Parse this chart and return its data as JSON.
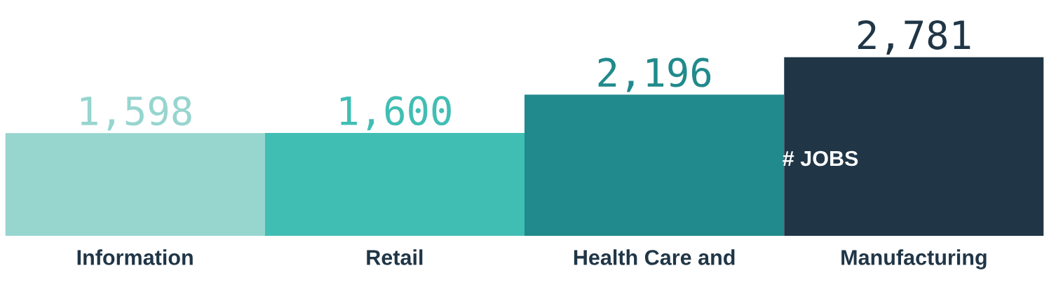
{
  "chart_data": {
    "type": "bar",
    "categories": [
      "Information",
      "Retail",
      "Health Care and",
      "Manufacturing"
    ],
    "values": [
      1598,
      1600,
      2196,
      2781
    ],
    "colors": [
      "#97d5cf",
      "#41beb4",
      "#218a8c",
      "#203647"
    ],
    "value_labels": [
      "1,598",
      "1,600",
      "2,196",
      "2,781"
    ],
    "annotations": [
      "# JOBS"
    ]
  }
}
